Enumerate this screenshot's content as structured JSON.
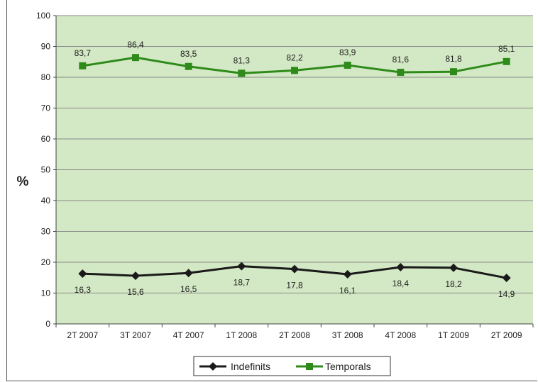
{
  "chart_data": {
    "type": "line",
    "title": "",
    "xlabel": "",
    "ylabel": "%",
    "ylim": [
      0,
      100
    ],
    "yticks": [
      "0",
      "10",
      "20",
      "30",
      "40",
      "50",
      "60",
      "70",
      "80",
      "90",
      "100"
    ],
    "grid": true,
    "legend_position": "bottom",
    "plot_background": "#d3e8c4",
    "categories": [
      "2T 2007",
      "3T 2007",
      "4T 2007",
      "1T 2008",
      "2T 2008",
      "3T 2008",
      "4T 2008",
      "1T 2009",
      "2T 2009"
    ],
    "series": [
      {
        "name": "Indefinits",
        "color": "#1a1a1a",
        "marker": "diamond",
        "values": [
          16.3,
          15.6,
          16.5,
          18.7,
          17.8,
          16.1,
          18.4,
          18.2,
          14.9
        ],
        "labels": [
          "16,3",
          "15,6",
          "16,5",
          "18,7",
          "17,8",
          "16,1",
          "18,4",
          "18,2",
          "14,9"
        ],
        "label_position": "below"
      },
      {
        "name": "Temporals",
        "color": "#2e8b1a",
        "marker": "square",
        "values": [
          83.7,
          86.4,
          83.5,
          81.3,
          82.2,
          83.9,
          81.6,
          81.8,
          85.1
        ],
        "labels": [
          "83,7",
          "86,4",
          "83,5",
          "81,3",
          "82,2",
          "83,9",
          "81,6",
          "81,8",
          "85,1"
        ],
        "label_position": "above"
      }
    ]
  }
}
